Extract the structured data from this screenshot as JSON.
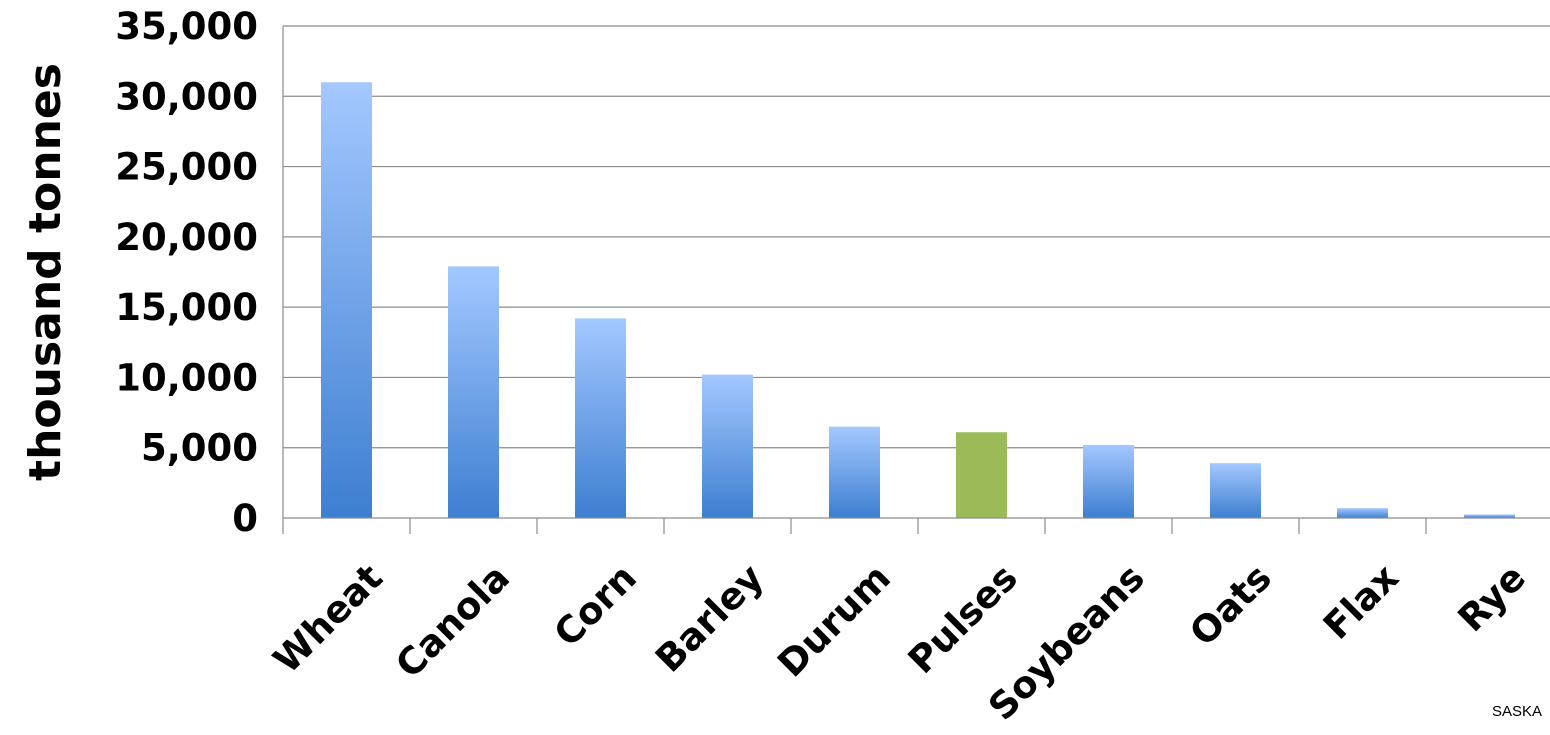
{
  "chart_data": {
    "type": "bar",
    "title": "",
    "xlabel": "",
    "ylabel": "thousand tonnes",
    "ylim": [
      0,
      35000
    ],
    "yticks": [
      0,
      5000,
      10000,
      15000,
      20000,
      25000,
      30000,
      35000
    ],
    "ytick_labels": [
      "0",
      "5,000",
      "10,000",
      "15,000",
      "20,000",
      "25,000",
      "30,000",
      "35,000"
    ],
    "categories": [
      "Wheat",
      "Canola",
      "Corn",
      "Barley",
      "Durum",
      "Pulses",
      "Soybeans",
      "Oats",
      "Flax",
      "Rye"
    ],
    "values": [
      31000,
      17900,
      14200,
      10200,
      6500,
      6100,
      5200,
      3900,
      700,
      250
    ],
    "highlight_category": "Pulses",
    "colors": {
      "bar_top": "#a4c8ff",
      "bar_bottom": "#3d7fd0",
      "highlight": "#9bbb59"
    },
    "grid": true,
    "legend": "none"
  },
  "corner_text": "SASKA"
}
